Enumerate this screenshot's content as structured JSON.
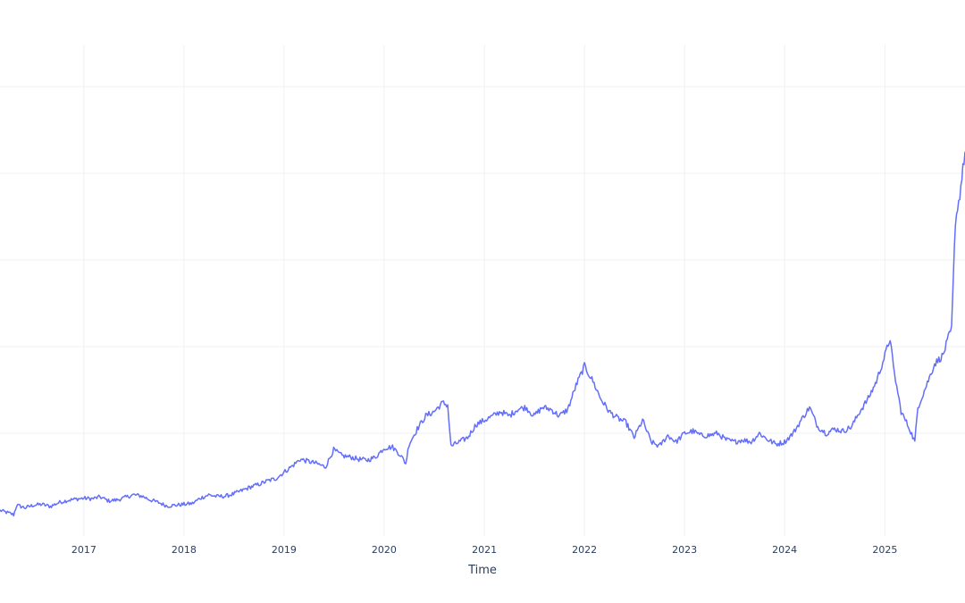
{
  "chart_data": {
    "type": "line",
    "title": "",
    "xlabel": "Time",
    "ylabel": "",
    "grid": true,
    "legend": "none",
    "line_color": "#636efa",
    "x_tick_labels": [
      "2017",
      "2018",
      "2019",
      "2020",
      "2021",
      "2022",
      "2023",
      "2024",
      "2025"
    ],
    "xlim": [
      "2016-03-01",
      "2025-10-20"
    ],
    "ylim": [
      0,
      1
    ],
    "y_gridlines": [
      0.2,
      0.4,
      0.6,
      0.8,
      1.0
    ],
    "y_ticks_visible": false,
    "series": [
      {
        "name": "",
        "x": [
          "2016-03-01",
          "2016-04-01",
          "2016-04-20",
          "2016-05-01",
          "2016-06-01",
          "2016-07-01",
          "2016-08-01",
          "2016-09-01",
          "2016-10-01",
          "2016-11-01",
          "2016-12-01",
          "2017-01-01",
          "2017-02-01",
          "2017-03-01",
          "2017-04-01",
          "2017-05-01",
          "2017-06-01",
          "2017-07-01",
          "2017-08-01",
          "2017-09-01",
          "2017-10-01",
          "2017-11-01",
          "2017-12-01",
          "2018-01-01",
          "2018-02-01",
          "2018-03-01",
          "2018-04-01",
          "2018-05-01",
          "2018-06-01",
          "2018-07-01",
          "2018-08-01",
          "2018-09-01",
          "2018-10-01",
          "2018-11-01",
          "2018-12-01",
          "2019-01-01",
          "2019-02-01",
          "2019-03-01",
          "2019-04-01",
          "2019-05-01",
          "2019-06-01",
          "2019-07-01",
          "2019-08-01",
          "2019-09-01",
          "2019-10-01",
          "2019-11-01",
          "2019-12-01",
          "2020-01-01",
          "2020-02-01",
          "2020-03-01",
          "2020-03-20",
          "2020-04-01",
          "2020-05-01",
          "2020-06-01",
          "2020-07-01",
          "2020-08-01",
          "2020-08-20",
          "2020-09-01",
          "2020-10-01",
          "2020-11-01",
          "2020-12-01",
          "2021-01-01",
          "2021-02-01",
          "2021-03-01",
          "2021-04-01",
          "2021-05-01",
          "2021-06-01",
          "2021-07-01",
          "2021-08-01",
          "2021-09-01",
          "2021-10-01",
          "2021-11-01",
          "2021-12-01",
          "2022-01-01",
          "2022-02-01",
          "2022-03-01",
          "2022-04-01",
          "2022-05-01",
          "2022-06-01",
          "2022-07-01",
          "2022-08-01",
          "2022-09-01",
          "2022-10-01",
          "2022-11-01",
          "2022-12-01",
          "2023-01-01",
          "2023-02-01",
          "2023-03-01",
          "2023-04-01",
          "2023-05-01",
          "2023-06-01",
          "2023-07-01",
          "2023-08-01",
          "2023-09-01",
          "2023-10-01",
          "2023-11-01",
          "2023-12-01",
          "2024-01-01",
          "2024-02-01",
          "2024-03-01",
          "2024-04-01",
          "2024-05-01",
          "2024-06-01",
          "2024-07-01",
          "2024-08-01",
          "2024-09-01",
          "2024-10-01",
          "2024-11-01",
          "2024-12-01",
          "2025-01-01",
          "2025-01-20",
          "2025-02-01",
          "2025-03-01",
          "2025-04-01",
          "2025-04-20",
          "2025-05-01",
          "2025-06-01",
          "2025-07-01",
          "2025-08-01",
          "2025-08-20",
          "2025-09-01",
          "2025-09-15",
          "2025-10-01",
          "2025-10-20"
        ],
        "y": [
          0.022,
          0.016,
          0.012,
          0.034,
          0.028,
          0.034,
          0.036,
          0.031,
          0.04,
          0.045,
          0.048,
          0.05,
          0.049,
          0.053,
          0.044,
          0.046,
          0.052,
          0.058,
          0.055,
          0.046,
          0.04,
          0.032,
          0.034,
          0.036,
          0.038,
          0.05,
          0.058,
          0.054,
          0.055,
          0.06,
          0.068,
          0.076,
          0.082,
          0.09,
          0.095,
          0.11,
          0.125,
          0.14,
          0.135,
          0.13,
          0.122,
          0.162,
          0.148,
          0.145,
          0.14,
          0.138,
          0.145,
          0.166,
          0.168,
          0.15,
          0.13,
          0.175,
          0.21,
          0.24,
          0.25,
          0.27,
          0.265,
          0.17,
          0.18,
          0.19,
          0.22,
          0.23,
          0.24,
          0.25,
          0.24,
          0.255,
          0.26,
          0.24,
          0.26,
          0.255,
          0.24,
          0.255,
          0.31,
          0.355,
          0.32,
          0.28,
          0.25,
          0.235,
          0.225,
          0.19,
          0.23,
          0.18,
          0.17,
          0.195,
          0.18,
          0.2,
          0.205,
          0.195,
          0.195,
          0.2,
          0.185,
          0.18,
          0.185,
          0.18,
          0.2,
          0.185,
          0.175,
          0.18,
          0.2,
          0.23,
          0.26,
          0.215,
          0.2,
          0.21,
          0.205,
          0.215,
          0.25,
          0.28,
          0.32,
          0.38,
          0.42,
          0.35,
          0.25,
          0.21,
          0.18,
          0.26,
          0.31,
          0.36,
          0.38,
          0.42,
          0.44,
          0.69,
          0.75,
          0.85
        ]
      }
    ]
  }
}
